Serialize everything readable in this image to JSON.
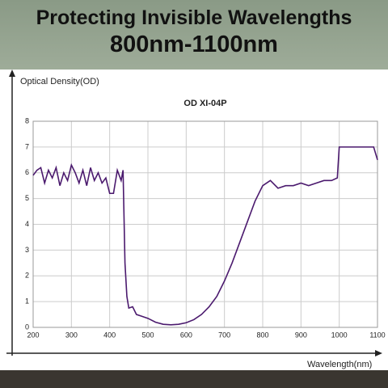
{
  "header": {
    "title": "Protecting Invisible Wavelengths",
    "subtitle": "800nm-1100nm"
  },
  "chart_data": {
    "type": "line",
    "title": "OD XI-04P",
    "y_label": "Optical Density(OD)",
    "x_label": "Wavelength(nm)",
    "x": [
      200,
      210,
      220,
      230,
      240,
      250,
      260,
      270,
      280,
      290,
      300,
      310,
      320,
      330,
      340,
      350,
      360,
      370,
      380,
      390,
      400,
      410,
      420,
      430,
      435,
      440,
      445,
      450,
      460,
      470,
      480,
      500,
      520,
      540,
      560,
      580,
      600,
      620,
      640,
      660,
      680,
      700,
      720,
      740,
      760,
      780,
      800,
      820,
      840,
      860,
      880,
      900,
      920,
      940,
      960,
      980,
      995,
      1000,
      1020,
      1040,
      1060,
      1090,
      1100
    ],
    "series": [
      {
        "name": "OD XI-04P",
        "color": "#4b1a6e",
        "values": [
          5.9,
          6.1,
          6.2,
          5.6,
          6.1,
          5.8,
          6.2,
          5.5,
          6.0,
          5.7,
          6.3,
          6.0,
          5.6,
          6.1,
          5.5,
          6.2,
          5.7,
          6.0,
          5.6,
          5.8,
          5.2,
          5.2,
          6.1,
          5.7,
          6.1,
          2.5,
          1.2,
          0.75,
          0.8,
          0.5,
          0.45,
          0.35,
          0.2,
          0.12,
          0.1,
          0.12,
          0.18,
          0.3,
          0.5,
          0.8,
          1.2,
          1.8,
          2.5,
          3.3,
          4.1,
          4.9,
          5.5,
          5.7,
          5.4,
          5.5,
          5.5,
          5.6,
          5.5,
          5.6,
          5.7,
          5.7,
          5.8,
          7.0,
          7.0,
          7.0,
          7.0,
          7.0,
          6.5
        ]
      }
    ],
    "xlim": [
      200,
      1100
    ],
    "xticks": [
      200,
      300,
      400,
      500,
      600,
      700,
      800,
      900,
      1000,
      1100
    ],
    "ylim": [
      0,
      8
    ],
    "yticks": [
      0,
      1,
      2,
      3,
      4,
      5,
      6,
      7,
      8
    ],
    "grid": true
  }
}
